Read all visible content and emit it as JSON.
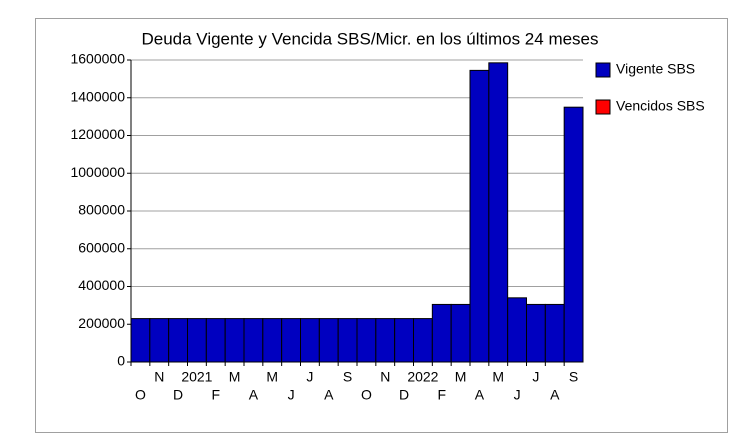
{
  "chart_data": {
    "type": "bar",
    "title": "Deuda Vigente y Vencida SBS/Micr. en los últimos 24 meses",
    "categories": [
      "O",
      "N",
      "D",
      "2021",
      "F",
      "M",
      "A",
      "M",
      "J",
      "J",
      "A",
      "S",
      "O",
      "N",
      "D",
      "2022",
      "F",
      "M",
      "A",
      "M",
      "J",
      "J",
      "A",
      "S"
    ],
    "series": [
      {
        "name": "Vigente SBS",
        "color": "#0000c0",
        "values": [
          230000,
          230000,
          230000,
          230000,
          230000,
          230000,
          230000,
          230000,
          230000,
          230000,
          230000,
          230000,
          230000,
          230000,
          230000,
          230000,
          305000,
          305000,
          1545000,
          1585000,
          340000,
          305000,
          305000,
          1350000
        ]
      },
      {
        "name": "Vencidos SBS",
        "color": "#ff0000",
        "values": [
          0,
          0,
          0,
          0,
          0,
          0,
          0,
          0,
          0,
          0,
          0,
          0,
          0,
          0,
          0,
          0,
          0,
          0,
          0,
          0,
          0,
          0,
          0,
          0
        ]
      }
    ],
    "ylim": [
      0,
      1600000
    ],
    "yticks": [
      0,
      200000,
      400000,
      600000,
      800000,
      1000000,
      1200000,
      1400000,
      1600000
    ],
    "grid": true,
    "legend": "right"
  }
}
